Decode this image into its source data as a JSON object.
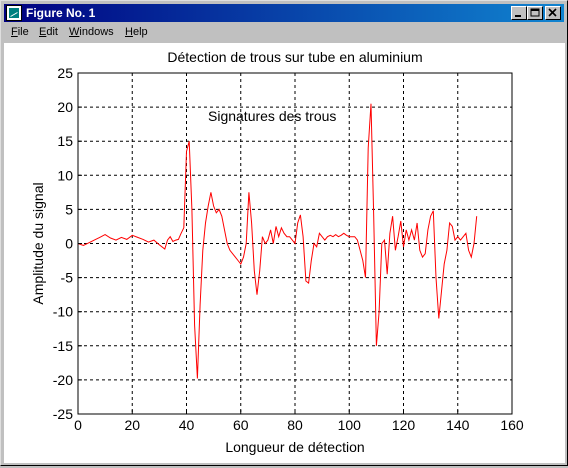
{
  "window": {
    "title": "Figure No. 1",
    "menu": [
      {
        "label": "File",
        "mnemonic": "F",
        "rest": "ile"
      },
      {
        "label": "Edit",
        "mnemonic": "E",
        "rest": "dit"
      },
      {
        "label": "Windows",
        "mnemonic": "W",
        "rest": "indows"
      },
      {
        "label": "Help",
        "mnemonic": "H",
        "rest": "elp"
      }
    ]
  },
  "colors": {
    "titlebar_start": "#000080",
    "titlebar_end": "#1084d0",
    "line": "#ff0000",
    "grid": "#000000"
  },
  "chart_data": {
    "type": "line",
    "title": "Détection de trous sur tube en aluminium",
    "xlabel": "Longueur de détection",
    "ylabel": "Amplitude du signal",
    "annotation": "Signatures des trous",
    "xlim": [
      0,
      160
    ],
    "ylim": [
      -25,
      25
    ],
    "xticks": [
      0,
      20,
      40,
      60,
      80,
      100,
      120,
      140,
      160
    ],
    "yticks": [
      -25,
      -20,
      -15,
      -10,
      -5,
      0,
      5,
      10,
      15,
      20,
      25
    ],
    "grid": true,
    "series": [
      {
        "values": [
          [
            0,
            0
          ],
          [
            2,
            -0.3
          ],
          [
            4,
            0.1
          ],
          [
            6,
            0.5
          ],
          [
            8,
            0.9
          ],
          [
            10,
            1.3
          ],
          [
            12,
            0.8
          ],
          [
            14,
            0.5
          ],
          [
            16,
            0.9
          ],
          [
            18,
            0.6
          ],
          [
            20,
            1.2
          ],
          [
            22,
            0.9
          ],
          [
            24,
            0.6
          ],
          [
            26,
            0.2
          ],
          [
            28,
            0.5
          ],
          [
            30,
            -0.2
          ],
          [
            32,
            -0.8
          ],
          [
            33,
            0.5
          ],
          [
            34,
            1.0
          ],
          [
            35,
            0.3
          ],
          [
            36,
            0.5
          ],
          [
            37,
            0.6
          ],
          [
            38,
            1.5
          ],
          [
            39,
            2.3
          ],
          [
            40,
            13.5
          ],
          [
            41,
            15.0
          ],
          [
            42,
            5.0
          ],
          [
            43,
            -12.0
          ],
          [
            44,
            -19.8
          ],
          [
            45,
            -9.0
          ],
          [
            46,
            -1.0
          ],
          [
            47,
            3.0
          ],
          [
            48,
            5.5
          ],
          [
            49,
            7.5
          ],
          [
            50,
            5.5
          ],
          [
            51,
            4.5
          ],
          [
            52,
            5.0
          ],
          [
            53,
            4.0
          ],
          [
            54,
            2.0
          ],
          [
            55,
            0.0
          ],
          [
            56,
            -1.0
          ],
          [
            57,
            -1.5
          ],
          [
            58,
            -2.0
          ],
          [
            59,
            -2.5
          ],
          [
            60,
            -3.0
          ],
          [
            61,
            -2.0
          ],
          [
            62,
            0.0
          ],
          [
            63,
            7.5
          ],
          [
            64,
            3.0
          ],
          [
            65,
            -4.0
          ],
          [
            66,
            -7.5
          ],
          [
            67,
            -4.0
          ],
          [
            68,
            1.0
          ],
          [
            69,
            0.0
          ],
          [
            70,
            0.5
          ],
          [
            71,
            2.0
          ],
          [
            72,
            0.0
          ],
          [
            73,
            2.5
          ],
          [
            74,
            1.0
          ],
          [
            75,
            2.3
          ],
          [
            76,
            1.5
          ],
          [
            77,
            1.0
          ],
          [
            78,
            1.0
          ],
          [
            79,
            0.5
          ],
          [
            80,
            0.0
          ],
          [
            81,
            3.0
          ],
          [
            82,
            4.2
          ],
          [
            83,
            1.0
          ],
          [
            84,
            -5.5
          ],
          [
            85,
            -5.8
          ],
          [
            86,
            -2.5
          ],
          [
            87,
            0.0
          ],
          [
            88,
            -0.5
          ],
          [
            89,
            1.5
          ],
          [
            90,
            1.0
          ],
          [
            91,
            0.5
          ],
          [
            92,
            1.0
          ],
          [
            93,
            1.2
          ],
          [
            94,
            1.0
          ],
          [
            95,
            1.3
          ],
          [
            96,
            1.0
          ],
          [
            97,
            1.2
          ],
          [
            98,
            1.5
          ],
          [
            99,
            1.2
          ],
          [
            100,
            1.0
          ],
          [
            101,
            1.0
          ],
          [
            102,
            1.0
          ],
          [
            103,
            0.5
          ],
          [
            104,
            -1.0
          ],
          [
            105,
            -2.5
          ],
          [
            106,
            -5.0
          ],
          [
            107,
            14.0
          ],
          [
            108,
            20.5
          ],
          [
            109,
            4.0
          ],
          [
            110,
            -15.0
          ],
          [
            111,
            -10.0
          ],
          [
            112,
            0.0
          ],
          [
            113,
            0.5
          ],
          [
            114,
            -4.5
          ],
          [
            115,
            1.5
          ],
          [
            116,
            4.0
          ],
          [
            117,
            -1.0
          ],
          [
            118,
            1.0
          ],
          [
            119,
            3.3
          ],
          [
            120,
            -0.5
          ],
          [
            121,
            2.0
          ],
          [
            122,
            0.5
          ],
          [
            123,
            2.0
          ],
          [
            124,
            0.5
          ],
          [
            125,
            3.0
          ],
          [
            126,
            -1.0
          ],
          [
            127,
            -2.0
          ],
          [
            128,
            -1.5
          ],
          [
            129,
            2.0
          ],
          [
            130,
            4.0
          ],
          [
            131,
            4.8
          ],
          [
            132,
            -5.0
          ],
          [
            133,
            -11.0
          ],
          [
            134,
            -7.0
          ],
          [
            135,
            -3.0
          ],
          [
            136,
            -1.0
          ],
          [
            137,
            3.0
          ],
          [
            138,
            2.5
          ],
          [
            139,
            0.5
          ],
          [
            140,
            1.0
          ],
          [
            141,
            0.5
          ],
          [
            142,
            1.0
          ],
          [
            143,
            1.5
          ],
          [
            144,
            -1.0
          ],
          [
            145,
            -2.0
          ],
          [
            146,
            0.0
          ],
          [
            147,
            4.0
          ]
        ]
      }
    ]
  }
}
